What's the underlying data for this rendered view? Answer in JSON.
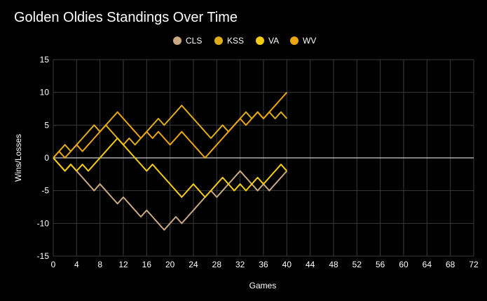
{
  "chart_data": {
    "type": "line",
    "title": "Golden Oldies Standings Over Time",
    "xlabel": "Games",
    "ylabel": "Wins/Losses",
    "xlim": [
      0,
      72
    ],
    "ylim": [
      -15,
      15
    ],
    "xticks": [
      0,
      4,
      8,
      12,
      16,
      20,
      24,
      28,
      32,
      36,
      40,
      44,
      48,
      52,
      56,
      60,
      64,
      68,
      72
    ],
    "yticks": [
      -15,
      -10,
      -5,
      0,
      5,
      10,
      15
    ],
    "grid": true,
    "legend_position": "top-center",
    "series": [
      {
        "name": "CLS",
        "color": "#C9A982",
        "values": [
          0,
          -1,
          -2,
          -1,
          -2,
          -3,
          -4,
          -5,
          -4,
          -5,
          -6,
          -7,
          -6,
          -7,
          -8,
          -9,
          -8,
          -9,
          -10,
          -11,
          -10,
          -9,
          -10,
          -9,
          -8,
          -7,
          -6,
          -5,
          -6,
          -5,
          -4,
          -3,
          -2,
          -3,
          -4,
          -5,
          -4,
          -5,
          -4,
          -3,
          -2
        ]
      },
      {
        "name": "KSS",
        "color": "#DDAE1A",
        "values": [
          0,
          1,
          2,
          1,
          2,
          3,
          4,
          5,
          4,
          5,
          4,
          3,
          2,
          3,
          2,
          3,
          4,
          5,
          6,
          5,
          6,
          7,
          8,
          7,
          6,
          5,
          4,
          3,
          4,
          5,
          4,
          5,
          6,
          7,
          6,
          7,
          6,
          7,
          6,
          7,
          6
        ]
      },
      {
        "name": "VA",
        "color": "#F3CB12",
        "values": [
          0,
          -1,
          -2,
          -1,
          -2,
          -1,
          -2,
          -1,
          0,
          1,
          2,
          3,
          2,
          1,
          0,
          -1,
          -2,
          -1,
          -2,
          -3,
          -4,
          -5,
          -6,
          -5,
          -4,
          -5,
          -6,
          -5,
          -4,
          -3,
          -4,
          -5,
          -4,
          -5,
          -4,
          -3,
          -4,
          -3,
          -2,
          -1,
          -2
        ]
      },
      {
        "name": "WV",
        "color": "#EBA612",
        "values": [
          0,
          1,
          0,
          1,
          2,
          1,
          2,
          3,
          4,
          5,
          6,
          7,
          6,
          5,
          4,
          3,
          4,
          3,
          4,
          3,
          2,
          3,
          4,
          3,
          2,
          1,
          0,
          1,
          2,
          3,
          4,
          5,
          6,
          5,
          6,
          7,
          6,
          7,
          8,
          9,
          10
        ]
      }
    ]
  }
}
